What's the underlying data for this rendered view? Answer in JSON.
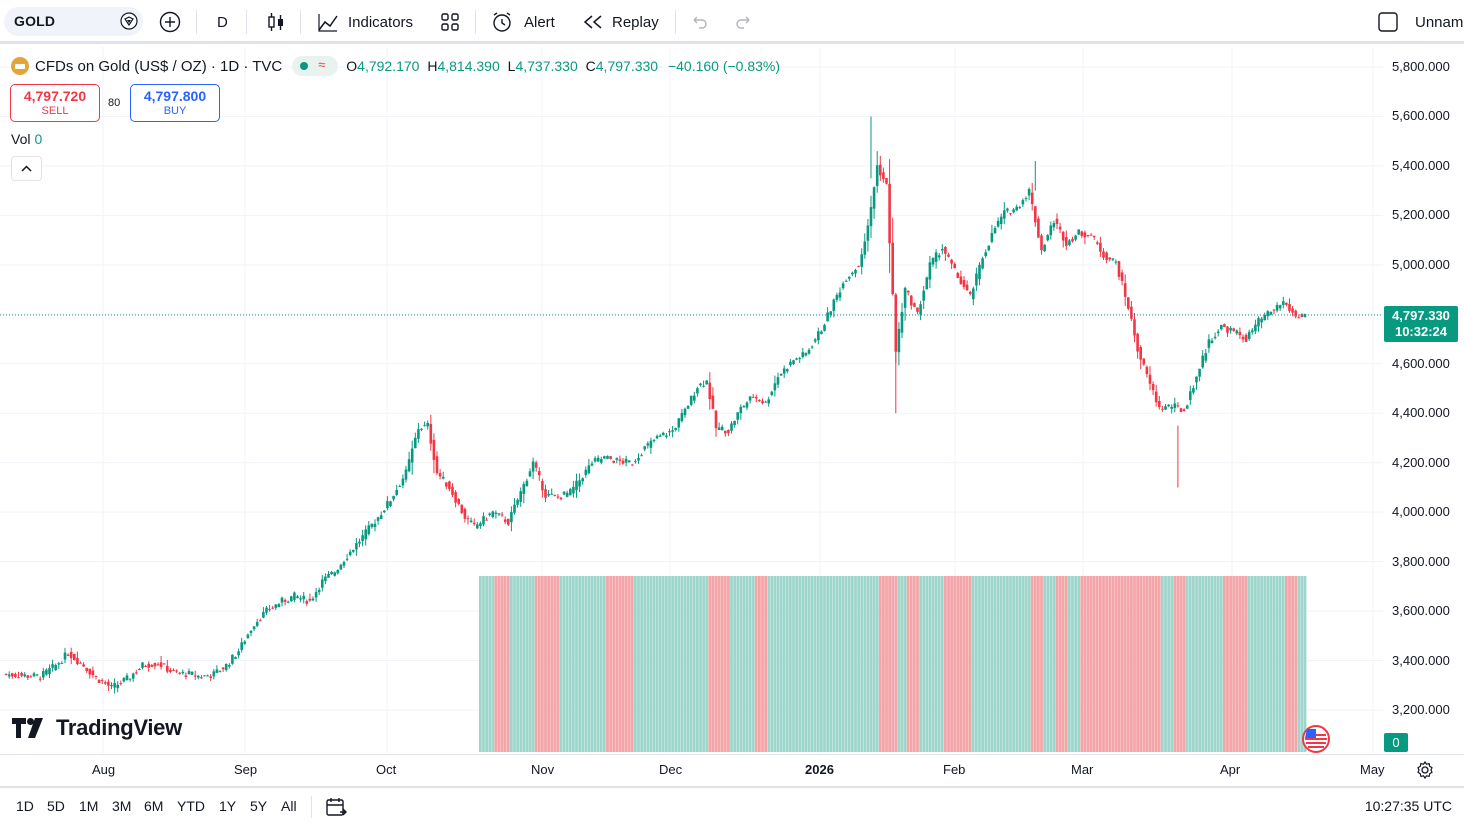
{
  "toolbar": {
    "symbol": "GOLD",
    "interval": "D",
    "indicators_label": "Indicators",
    "alert_label": "Alert",
    "replay_label": "Replay",
    "layout_name": "Unnam"
  },
  "legend": {
    "title": "CFDs on Gold (US$ / OZ) · 1D · TVC",
    "open_label": "O",
    "open": "4,792.170",
    "high_label": "H",
    "high": "4,814.390",
    "low_label": "L",
    "low": "4,737.330",
    "close_label": "C",
    "close": "4,797.330",
    "change": "−40.160 (−0.83%)",
    "sell_price": "4,797.720",
    "sell_label": "SELL",
    "buy_price": "4,797.800",
    "buy_label": "BUY",
    "spread": "80",
    "vol_label": "Vol",
    "vol_value": "0"
  },
  "price_axis": {
    "labels": [
      "5,800.000",
      "5,600.000",
      "5,400.000",
      "5,200.000",
      "5,000.000",
      "4,600.000",
      "4,400.000",
      "4,200.000",
      "4,000.000",
      "3,800.000",
      "3,600.000",
      "3,400.000",
      "3,200.000"
    ],
    "last_price": "4,797.330",
    "countdown": "10:32:24",
    "volume_tag": "0"
  },
  "time_axis": {
    "labels": [
      "Aug",
      "Sep",
      "Oct",
      "Nov",
      "Dec",
      "2026",
      "Feb",
      "Mar",
      "Apr",
      "May"
    ]
  },
  "bottom_bar": {
    "ranges": [
      "1D",
      "5D",
      "1M",
      "3M",
      "6M",
      "YTD",
      "1Y",
      "5Y",
      "All"
    ],
    "clock": "10:27:35 UTC"
  },
  "branding": {
    "logo_text": "TradingView"
  },
  "colors": {
    "up": "#089981",
    "down": "#f23645",
    "vol_up": "#9fd6cc",
    "vol_down": "#f3a5a8",
    "accent": "#2962ff"
  },
  "chart_data": {
    "type": "candlestick",
    "title": "CFDs on Gold (US$ / OZ) · 1D · TVC",
    "ylim": [
      3100,
      5850
    ],
    "y_ticks": [
      3200,
      3400,
      3600,
      3800,
      4000,
      4200,
      4400,
      4600,
      5000,
      5200,
      5400,
      5600,
      5800
    ],
    "last_price": 4797.33,
    "close_path": [
      [
        0,
        3345
      ],
      [
        6,
        3340
      ],
      [
        12,
        3335
      ],
      [
        17,
        3380
      ],
      [
        21,
        3430
      ],
      [
        26,
        3380
      ],
      [
        30,
        3330
      ],
      [
        35,
        3290
      ],
      [
        40,
        3325
      ],
      [
        45,
        3380
      ],
      [
        50,
        3390
      ],
      [
        55,
        3350
      ],
      [
        60,
        3345
      ],
      [
        64,
        3335
      ],
      [
        68,
        3345
      ],
      [
        72,
        3380
      ],
      [
        76,
        3440
      ],
      [
        81,
        3550
      ],
      [
        85,
        3600
      ],
      [
        90,
        3640
      ],
      [
        94,
        3660
      ],
      [
        99,
        3640
      ],
      [
        103,
        3720
      ],
      [
        107,
        3760
      ],
      [
        112,
        3840
      ],
      [
        116,
        3900
      ],
      [
        121,
        3980
      ],
      [
        125,
        4050
      ],
      [
        130,
        4160
      ],
      [
        134,
        4340
      ],
      [
        137,
        4350
      ],
      [
        140,
        4160
      ],
      [
        144,
        4100
      ],
      [
        149,
        3980
      ],
      [
        152,
        3940
      ],
      [
        155,
        3970
      ],
      [
        158,
        4000
      ],
      [
        163,
        3960
      ],
      [
        167,
        4080
      ],
      [
        171,
        4200
      ],
      [
        175,
        4070
      ],
      [
        179,
        4060
      ],
      [
        183,
        4080
      ],
      [
        186,
        4130
      ],
      [
        190,
        4200
      ],
      [
        194,
        4220
      ],
      [
        199,
        4205
      ],
      [
        203,
        4200
      ],
      [
        207,
        4260
      ],
      [
        211,
        4300
      ],
      [
        216,
        4330
      ],
      [
        220,
        4410
      ],
      [
        224,
        4510
      ],
      [
        227,
        4530
      ],
      [
        230,
        4340
      ],
      [
        234,
        4330
      ],
      [
        238,
        4420
      ],
      [
        242,
        4470
      ],
      [
        246,
        4440
      ],
      [
        250,
        4550
      ],
      [
        255,
        4615
      ],
      [
        259,
        4640
      ],
      [
        264,
        4740
      ],
      [
        268,
        4850
      ],
      [
        272,
        4950
      ],
      [
        276,
        5000
      ],
      [
        279,
        5150
      ],
      [
        282,
        5400
      ],
      [
        285,
        5320
      ],
      [
        288,
        4650
      ],
      [
        291,
        4900
      ],
      [
        295,
        4800
      ],
      [
        299,
        5000
      ],
      [
        303,
        5070
      ],
      [
        308,
        4950
      ],
      [
        312,
        4870
      ],
      [
        316,
        5030
      ],
      [
        320,
        5150
      ],
      [
        323,
        5210
      ],
      [
        327,
        5230
      ],
      [
        331,
        5300
      ],
      [
        335,
        5060
      ],
      [
        339,
        5180
      ],
      [
        343,
        5090
      ],
      [
        347,
        5130
      ],
      [
        351,
        5120
      ],
      [
        355,
        5040
      ],
      [
        359,
        5010
      ],
      [
        363,
        4830
      ],
      [
        366,
        4660
      ],
      [
        369,
        4550
      ],
      [
        373,
        4420
      ],
      [
        377,
        4430
      ],
      [
        381,
        4410
      ],
      [
        385,
        4550
      ],
      [
        389,
        4690
      ],
      [
        393,
        4750
      ],
      [
        397,
        4730
      ],
      [
        401,
        4700
      ],
      [
        405,
        4770
      ],
      [
        409,
        4810
      ],
      [
        413,
        4850
      ],
      [
        417,
        4790
      ],
      [
        420,
        4797
      ]
    ],
    "volume": "0"
  }
}
